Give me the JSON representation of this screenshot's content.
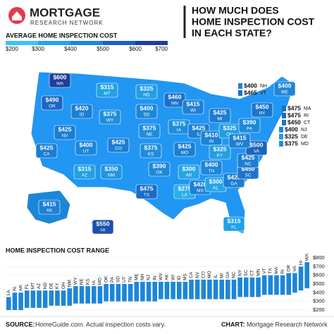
{
  "header": {
    "brand": "MORTGAGE",
    "brand_sub": "RESEARCH NETWORK",
    "title_lines": [
      "HOW MUCH DOES",
      "HOME INSPECTION COST",
      "IN EACH STATE?"
    ]
  },
  "legend": {
    "title": "AVERAGE HOME INSPECTION COST",
    "ticks": [
      {
        "value": 200,
        "label": "$200"
      },
      {
        "value": 300,
        "label": "$300"
      },
      {
        "value": 400,
        "label": "$400"
      },
      {
        "value": 500,
        "label": "$500"
      },
      {
        "value": 600,
        "label": "$600"
      },
      {
        "value": 700,
        "label": "$700"
      }
    ],
    "colors": [
      "#3cc4f2",
      "#22a6e8",
      "#1c86d8",
      "#1b63bf",
      "#1f3f9a",
      "#1a237e"
    ]
  },
  "map": {
    "type": "choropleth",
    "states": [
      {
        "abbr": "WA",
        "value": 600,
        "label": "$600"
      },
      {
        "abbr": "OR",
        "value": 490,
        "label": "$490"
      },
      {
        "abbr": "CA",
        "value": 425,
        "label": "$425"
      },
      {
        "abbr": "NV",
        "value": 425,
        "label": "$425"
      },
      {
        "abbr": "ID",
        "value": 420,
        "label": "$420"
      },
      {
        "abbr": "MT",
        "value": 315,
        "label": "$315"
      },
      {
        "abbr": "WY",
        "value": 375,
        "label": "$375"
      },
      {
        "abbr": "UT",
        "value": 400,
        "label": "$400"
      },
      {
        "abbr": "AZ",
        "value": 315,
        "label": "$315"
      },
      {
        "abbr": "CO",
        "value": 425,
        "label": "$425"
      },
      {
        "abbr": "NM",
        "value": 350,
        "label": "$350"
      },
      {
        "abbr": "ND",
        "value": 325,
        "label": "$325"
      },
      {
        "abbr": "SD",
        "value": 400,
        "label": "$400"
      },
      {
        "abbr": "NE",
        "value": 375,
        "label": "$375"
      },
      {
        "abbr": "KS",
        "value": 375,
        "label": "$375"
      },
      {
        "abbr": "OK",
        "value": 390,
        "label": "$390"
      },
      {
        "abbr": "TX",
        "value": 475,
        "label": "$475"
      },
      {
        "abbr": "MN",
        "value": 460,
        "label": "$460"
      },
      {
        "abbr": "IA",
        "value": 375,
        "label": "$375"
      },
      {
        "abbr": "MO",
        "value": 425,
        "label": "$425"
      },
      {
        "abbr": "AR",
        "value": 300,
        "label": "$300"
      },
      {
        "abbr": "LA",
        "value": 275,
        "label": "$275"
      },
      {
        "abbr": "WI",
        "value": 415,
        "label": "$415"
      },
      {
        "abbr": "IL",
        "value": 425,
        "label": "$425"
      },
      {
        "abbr": "MI",
        "value": 425,
        "label": "$425"
      },
      {
        "abbr": "IN",
        "value": 410,
        "label": "$410"
      },
      {
        "abbr": "OH",
        "value": 325,
        "label": "$325"
      },
      {
        "abbr": "KY",
        "value": 325,
        "label": "$325"
      },
      {
        "abbr": "TN",
        "value": 400,
        "label": "$400"
      },
      {
        "abbr": "MS",
        "value": 420,
        "label": "$420"
      },
      {
        "abbr": "AL",
        "value": 300,
        "label": "$300"
      },
      {
        "abbr": "GA",
        "value": 425,
        "label": "$425"
      },
      {
        "abbr": "FL",
        "value": 315,
        "label": "$315"
      },
      {
        "abbr": "SC",
        "value": 450,
        "label": "$450"
      },
      {
        "abbr": "NC",
        "value": 425,
        "label": "$425"
      },
      {
        "abbr": "VA",
        "value": 500,
        "label": "$500"
      },
      {
        "abbr": "WV",
        "value": 415,
        "label": "$415"
      },
      {
        "abbr": "PA",
        "value": 390,
        "label": "$390"
      },
      {
        "abbr": "NY",
        "value": 450,
        "label": "$450"
      },
      {
        "abbr": "ME",
        "value": 400,
        "label": "$400"
      },
      {
        "abbr": "NH",
        "value": 400,
        "label": "$400"
      },
      {
        "abbr": "VT",
        "value": 465,
        "label": "$465"
      },
      {
        "abbr": "MA",
        "value": 475,
        "label": "$475"
      },
      {
        "abbr": "RI",
        "value": 475,
        "label": "$475"
      },
      {
        "abbr": "CT",
        "value": 450,
        "label": "$450"
      },
      {
        "abbr": "NJ",
        "value": 400,
        "label": "$400"
      },
      {
        "abbr": "DE",
        "value": 325,
        "label": "$325"
      },
      {
        "abbr": "MD",
        "value": 375,
        "label": "$375"
      },
      {
        "abbr": "AK",
        "value": 415,
        "label": "$415"
      },
      {
        "abbr": "HI",
        "value": 550,
        "label": "$550"
      }
    ]
  },
  "chart_data": {
    "type": "range_bar",
    "title": "HOME INSPECTION COST RANGE",
    "categories": [
      "LA",
      "AL",
      "AR",
      "FL",
      "MT",
      "AZ",
      "ND",
      "DE",
      "KY",
      "OH",
      "NM",
      "WY",
      "NE",
      "KS",
      "IA",
      "MD",
      "OK",
      "PA",
      "SD",
      "UT",
      "TN",
      "ME",
      "NH",
      "NJ",
      "IN",
      "WV",
      "AK",
      "WI",
      "ID",
      "MS",
      "CA",
      "NV",
      "CO",
      "MO",
      "IL",
      "MI",
      "GA",
      "NC",
      "NY",
      "SC",
      "CT",
      "MN",
      "VT",
      "TX",
      "MA",
      "RI",
      "OR",
      "VA",
      "HI",
      "WA"
    ],
    "range_low": [
      200,
      200,
      200,
      225,
      225,
      225,
      225,
      250,
      250,
      250,
      250,
      275,
      275,
      275,
      275,
      275,
      300,
      300,
      300,
      300,
      300,
      300,
      300,
      300,
      300,
      325,
      325,
      325,
      325,
      325,
      325,
      325,
      325,
      325,
      325,
      325,
      325,
      325,
      350,
      350,
      350,
      350,
      375,
      375,
      375,
      375,
      375,
      400,
      425,
      450
    ],
    "range_high": [
      350,
      400,
      400,
      425,
      425,
      425,
      425,
      425,
      425,
      425,
      450,
      475,
      475,
      475,
      475,
      475,
      500,
      500,
      500,
      500,
      500,
      525,
      525,
      525,
      525,
      525,
      525,
      525,
      525,
      525,
      550,
      550,
      550,
      550,
      550,
      550,
      550,
      550,
      575,
      575,
      575,
      575,
      600,
      600,
      600,
      600,
      625,
      625,
      700,
      750
    ],
    "color": "#1c86d8",
    "ylim": [
      200,
      800
    ],
    "yticks": [
      {
        "value": 200,
        "label": "$200"
      },
      {
        "value": 300,
        "label": "$300"
      },
      {
        "value": 400,
        "label": "$400"
      },
      {
        "value": 500,
        "label": "$500"
      },
      {
        "value": 600,
        "label": "$600"
      },
      {
        "value": 700,
        "label": "$700"
      },
      {
        "value": 800,
        "label": "$800"
      }
    ]
  },
  "footer": {
    "source_label": "SOURCE:",
    "source_text": "HomeGuide.com. Actual inspection costs vary.",
    "chart_label": "CHART:",
    "chart_text": "Mortgage Research Network"
  }
}
